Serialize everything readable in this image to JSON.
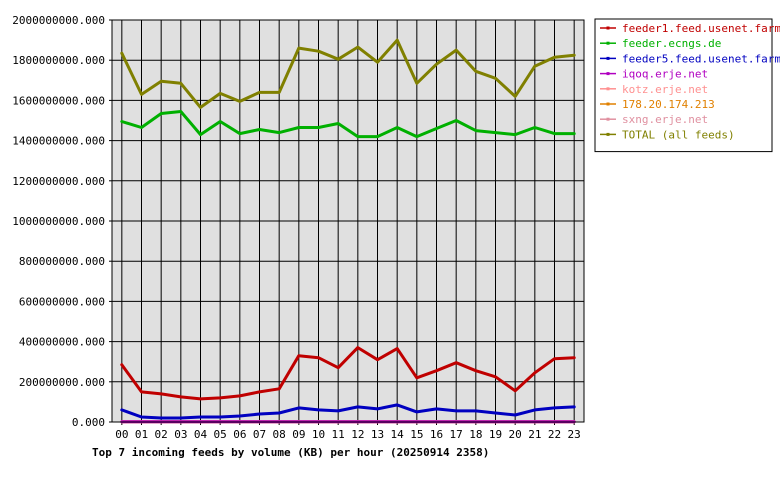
{
  "chart_data": {
    "type": "line",
    "title": "Top 7 incoming feeds by volume (KB) per hour (20250914 2358)",
    "x": [
      "00",
      "01",
      "02",
      "03",
      "04",
      "05",
      "06",
      "07",
      "08",
      "09",
      "10",
      "11",
      "12",
      "13",
      "14",
      "15",
      "16",
      "17",
      "18",
      "19",
      "20",
      "21",
      "22",
      "23"
    ],
    "ylim": [
      0,
      2000000000
    ],
    "yticks": [
      "0.000",
      "200000000.000",
      "400000000.000",
      "600000000.000",
      "800000000.000",
      "1000000000.000",
      "1200000000.000",
      "1400000000.000",
      "1600000000.000",
      "1800000000.000",
      "2000000000.000"
    ],
    "grid": true,
    "legend_position": "top-right",
    "series": [
      {
        "name": "feeder1.feed.usenet.farm",
        "color": "#c00000",
        "values": [
          285000000,
          150000000,
          140000000,
          125000000,
          115000000,
          120000000,
          130000000,
          150000000,
          165000000,
          330000000,
          320000000,
          270000000,
          370000000,
          310000000,
          365000000,
          220000000,
          255000000,
          295000000,
          255000000,
          225000000,
          155000000,
          245000000,
          315000000,
          320000000
        ]
      },
      {
        "name": "feeder.ecngs.de",
        "color": "#00b000",
        "values": [
          1495000000,
          1465000000,
          1535000000,
          1545000000,
          1430000000,
          1495000000,
          1435000000,
          1455000000,
          1440000000,
          1465000000,
          1465000000,
          1485000000,
          1420000000,
          1420000000,
          1465000000,
          1420000000,
          1460000000,
          1500000000,
          1450000000,
          1440000000,
          1430000000,
          1465000000,
          1435000000,
          1435000000
        ]
      },
      {
        "name": "feeder5.feed.usenet.farm",
        "color": "#0000c0",
        "values": [
          60000000,
          25000000,
          20000000,
          20000000,
          25000000,
          25000000,
          30000000,
          40000000,
          45000000,
          70000000,
          60000000,
          55000000,
          75000000,
          65000000,
          85000000,
          50000000,
          65000000,
          55000000,
          55000000,
          45000000,
          35000000,
          60000000,
          70000000,
          75000000
        ]
      },
      {
        "name": "iqoq.erje.net",
        "color": "#b000c0",
        "values": [
          1000000,
          1000000,
          1000000,
          1000000,
          1000000,
          1000000,
          1000000,
          1000000,
          1000000,
          1000000,
          1000000,
          1000000,
          1000000,
          1000000,
          1000000,
          1000000,
          1000000,
          1000000,
          1000000,
          1000000,
          1000000,
          1000000,
          1000000,
          1000000
        ]
      },
      {
        "name": "kotz.erje.net",
        "color": "#ff9090",
        "values": [
          1000000,
          1000000,
          1000000,
          1000000,
          1000000,
          1000000,
          1000000,
          1000000,
          1000000,
          1000000,
          1000000,
          1000000,
          1000000,
          1000000,
          1000000,
          1000000,
          1000000,
          1000000,
          1000000,
          1000000,
          1000000,
          1000000,
          1000000,
          1000000
        ]
      },
      {
        "name": "178.20.174.213",
        "color": "#e08000",
        "values": [
          1000000,
          1000000,
          1000000,
          1000000,
          1000000,
          1000000,
          1000000,
          1000000,
          1000000,
          1000000,
          1000000,
          1000000,
          1000000,
          1000000,
          1000000,
          1000000,
          1000000,
          1000000,
          1000000,
          1000000,
          1000000,
          1000000,
          1000000,
          1000000
        ]
      },
      {
        "name": "sxng.erje.net",
        "color": "#e090a0",
        "values": [
          1000000,
          1000000,
          1000000,
          1000000,
          1000000,
          1000000,
          1000000,
          1000000,
          1000000,
          1000000,
          1000000,
          1000000,
          1000000,
          1000000,
          1000000,
          1000000,
          1000000,
          1000000,
          1000000,
          1000000,
          1000000,
          1000000,
          1000000,
          1000000
        ]
      },
      {
        "name": "TOTAL (all feeds)",
        "color": "#808000",
        "values": [
          1835000000,
          1630000000,
          1695000000,
          1685000000,
          1565000000,
          1635000000,
          1595000000,
          1640000000,
          1640000000,
          1860000000,
          1845000000,
          1805000000,
          1865000000,
          1790000000,
          1900000000,
          1685000000,
          1780000000,
          1850000000,
          1745000000,
          1710000000,
          1620000000,
          1770000000,
          1815000000,
          1825000000
        ]
      }
    ]
  }
}
